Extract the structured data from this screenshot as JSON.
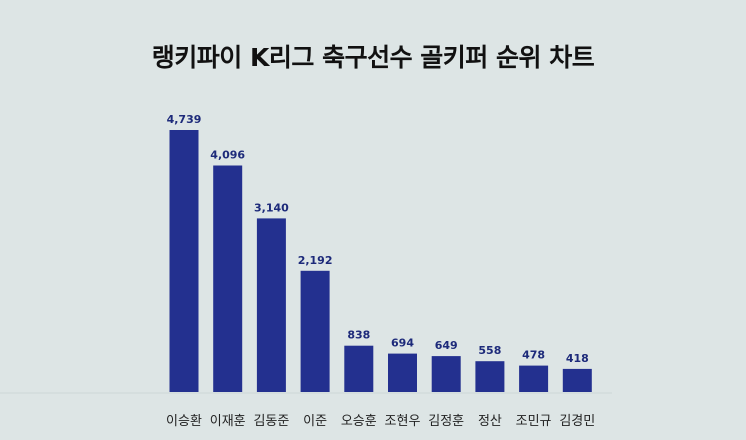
{
  "chart_data": {
    "type": "bar",
    "title": "랭키파이 K리그 축구선수 골키퍼 순위 차트",
    "categories": [
      "이승환",
      "이재훈",
      "김동준",
      "이준",
      "오승훈",
      "조현우",
      "김정훈",
      "정산",
      "조민규",
      "김경민"
    ],
    "values": [
      4739,
      4096,
      3140,
      2192,
      838,
      694,
      649,
      558,
      478,
      418
    ],
    "value_labels": [
      "4,739",
      "4,096",
      "3,140",
      "2,192",
      "838",
      "694",
      "649",
      "558",
      "478",
      "418"
    ],
    "ylim": [
      0,
      4739
    ],
    "grid": false,
    "legend": "none",
    "bar_color": "#23308f",
    "background_color": "#dde5e5"
  }
}
